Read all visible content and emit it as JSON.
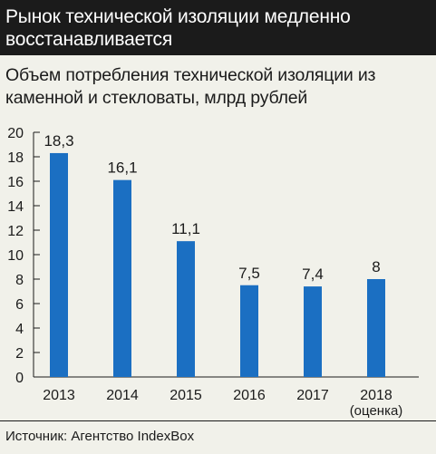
{
  "header": {
    "title": "Рынок технической изоляции медленно восстанавливается"
  },
  "chart_data": {
    "type": "bar",
    "title": "Рынок технической изоляции медленно восстанавливается",
    "subtitle": "Объем потребления технической изоляции из каменной и стекловаты, млрд рублей",
    "categories": [
      "2013",
      "2014",
      "2015",
      "2016",
      "2017",
      "2018"
    ],
    "category_notes": [
      "",
      "",
      "",
      "",
      "",
      "(оценка)"
    ],
    "values": [
      18.3,
      16.1,
      11.1,
      7.5,
      7.4,
      8
    ],
    "value_labels": [
      "18,3",
      "16,1",
      "11,1",
      "7,5",
      "7,4",
      "8"
    ],
    "ylim": [
      0,
      20
    ],
    "yticks": [
      0,
      2,
      4,
      6,
      8,
      10,
      12,
      14,
      16,
      18,
      20
    ],
    "grid": false,
    "bar_color": "#1b6fc2"
  },
  "footer": {
    "source": "Источник: Агентство IndexBox"
  }
}
